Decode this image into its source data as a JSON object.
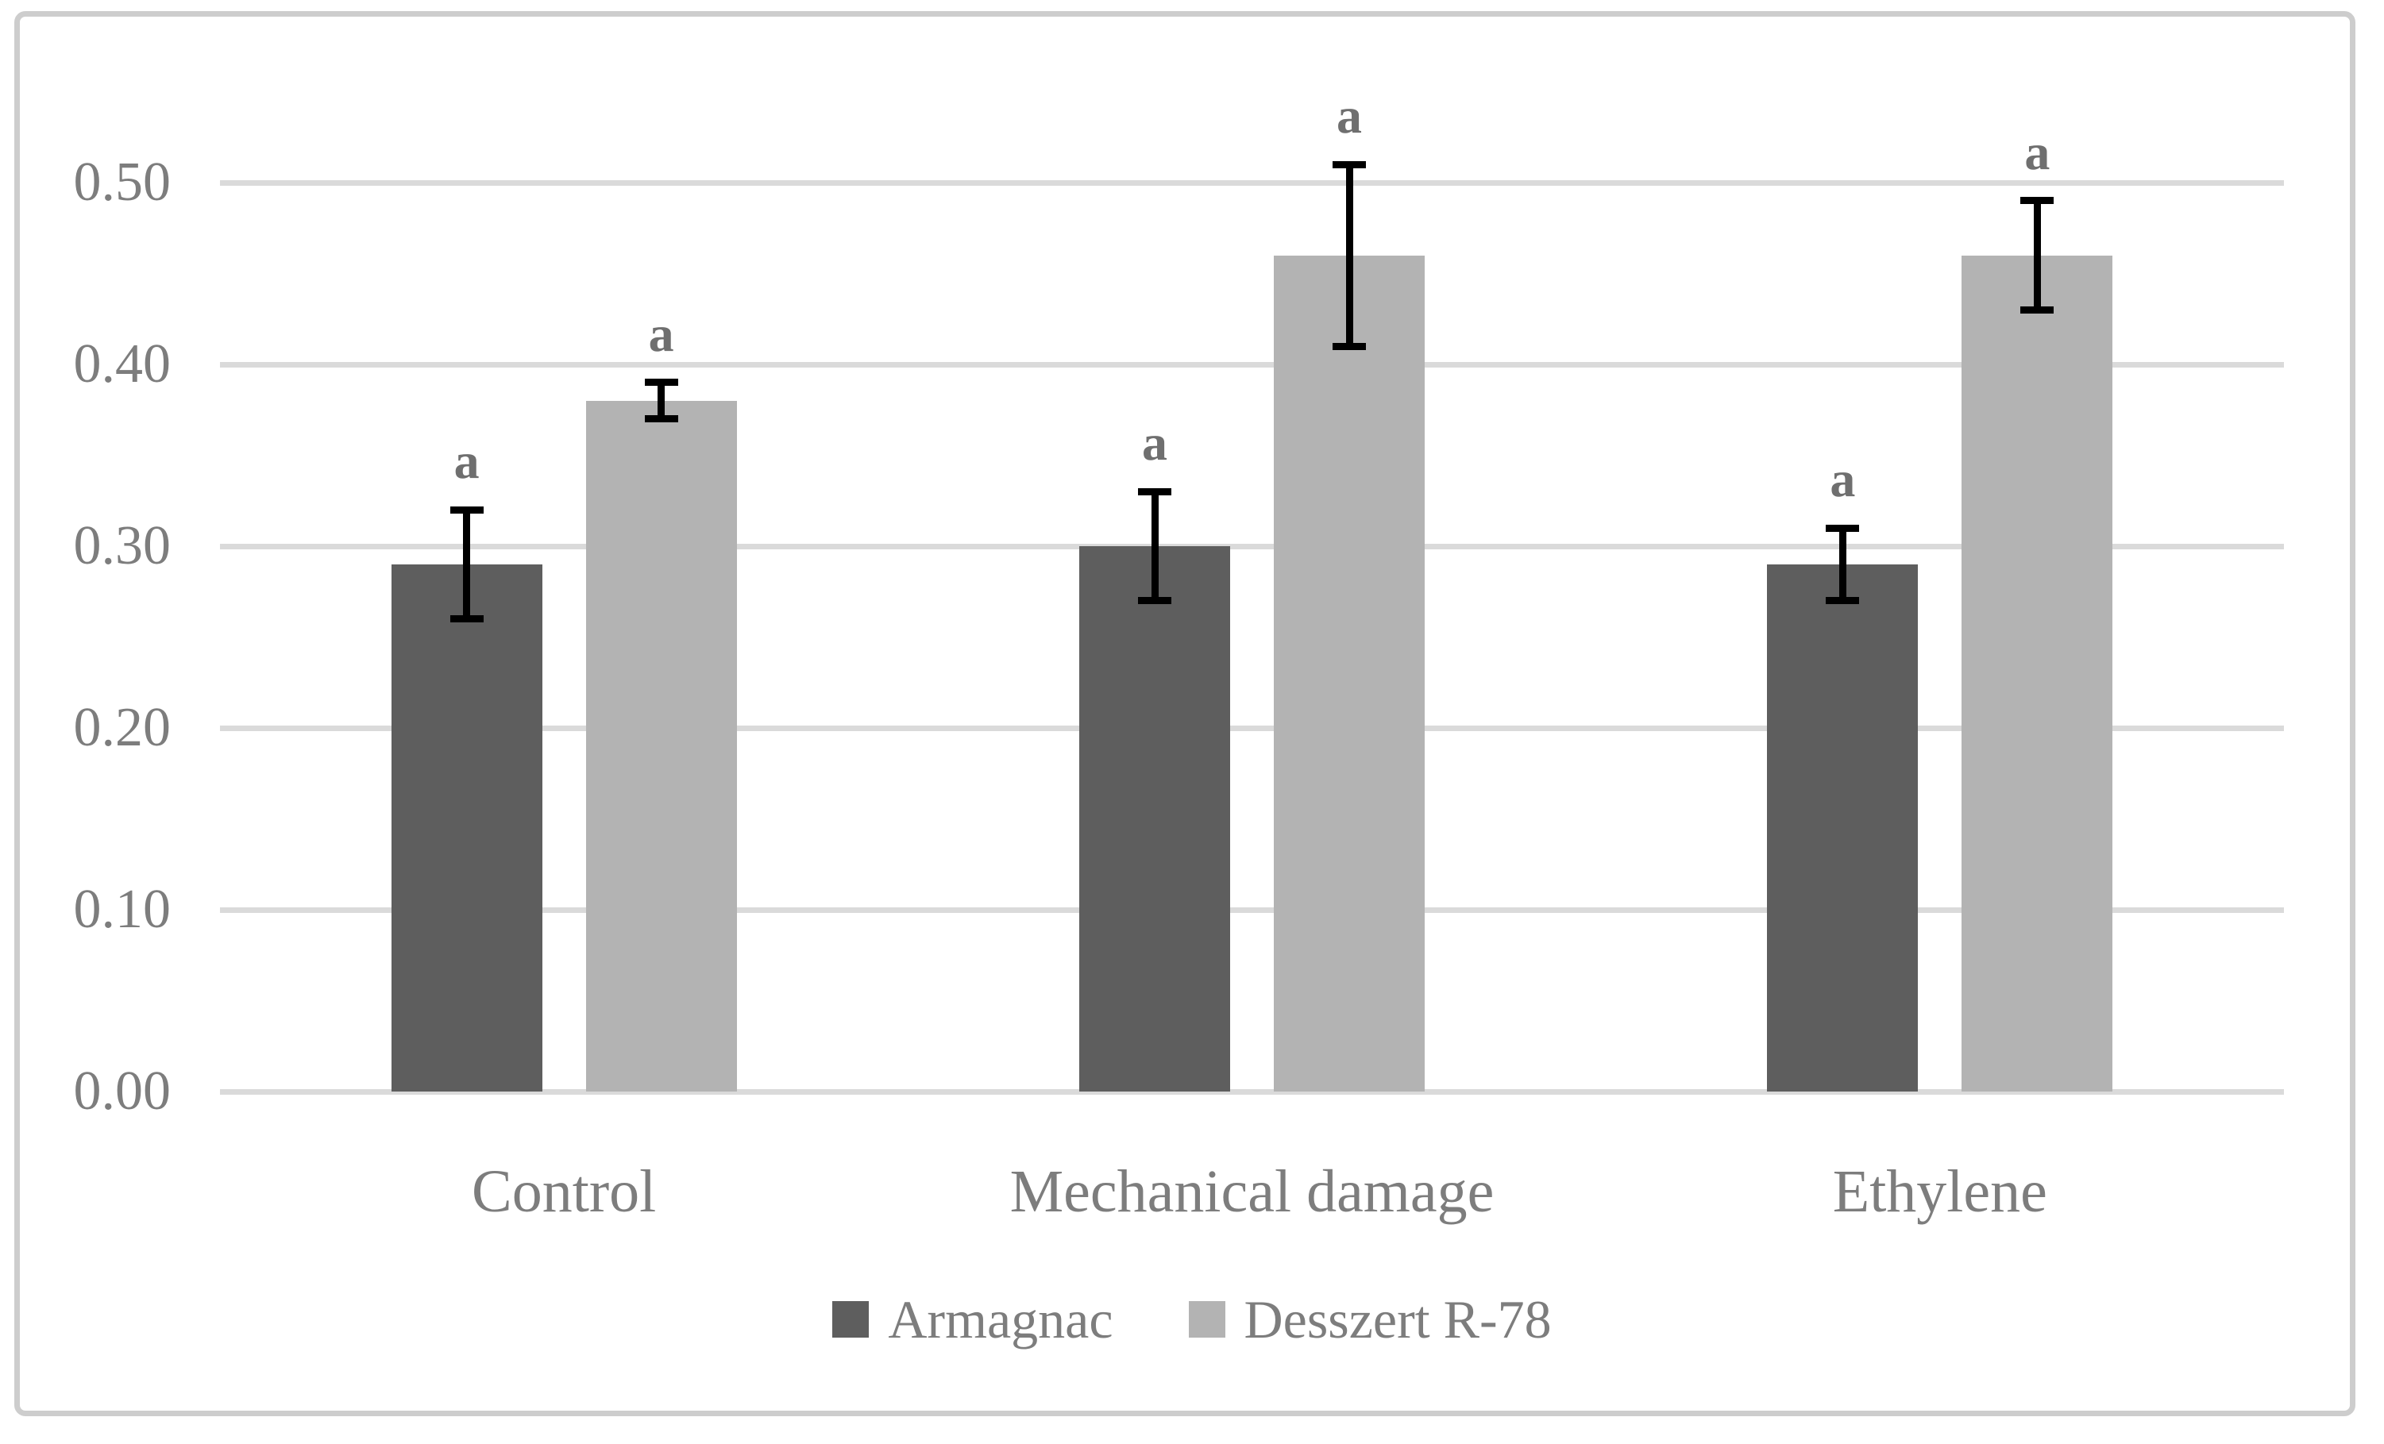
{
  "figure": {
    "kind": "clustered-column-chart",
    "background_color": "#ffffff",
    "border_color": "#cdcdcd"
  },
  "chart_data": {
    "type": "bar",
    "title": "",
    "xlabel": "",
    "ylabel": "",
    "categories": [
      "Control",
      "Mechanical damage",
      "Ethylene"
    ],
    "series": [
      {
        "name": "Armagnac",
        "color": "#5e5e5e",
        "values": [
          0.29,
          0.3,
          0.29
        ],
        "error_low": [
          0.26,
          0.27,
          0.27
        ],
        "error_high": [
          0.32,
          0.33,
          0.31
        ],
        "point_labels": [
          "a",
          "a",
          "a"
        ]
      },
      {
        "name": "Desszert R-78",
        "color": "#b3b3b3",
        "values": [
          0.38,
          0.46,
          0.46
        ],
        "error_low": [
          0.37,
          0.41,
          0.43
        ],
        "error_high": [
          0.39,
          0.51,
          0.49
        ],
        "point_labels": [
          "a",
          "a",
          "a"
        ]
      }
    ],
    "ylim": [
      0,
      0.5
    ],
    "yticks": [
      0.0,
      0.1,
      0.2,
      0.3,
      0.4,
      0.5
    ],
    "ytick_labels": [
      "0.00",
      "0.10",
      "0.20",
      "0.30",
      "0.40",
      "0.50"
    ],
    "grid": "horizontal",
    "gridline_color": "#dadada",
    "errorbar_color": "#000000",
    "axis_text_color": "#7d7d7d",
    "sig_label_color": "#6f6f6f",
    "legend_position": "bottom"
  }
}
